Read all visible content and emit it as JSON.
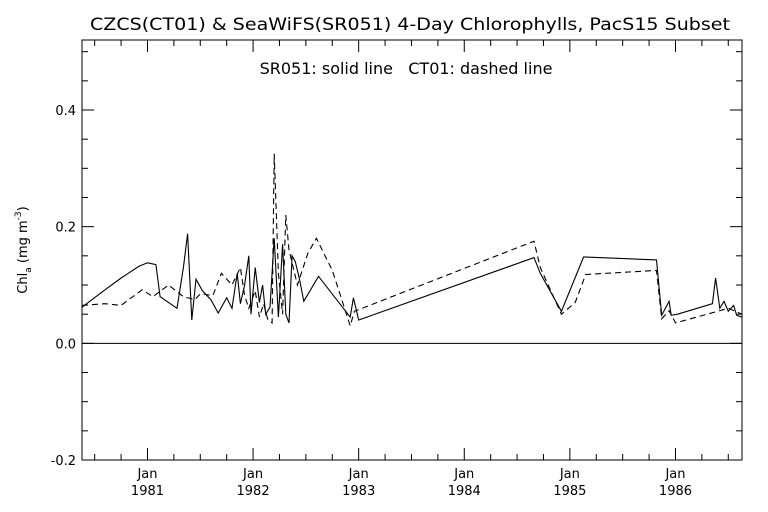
{
  "chart_data": {
    "type": "line",
    "title": "CZCS(CT01) & SeaWiFS(SR051) 4-Day Chlorophylls, PacS15 Subset",
    "annotation": "SR051: solid line   CT01: dashed line",
    "ylabel_main": "Chl",
    "ylabel_sub": "a",
    "ylabel_unit": " (mg m",
    "ylabel_sup": "-3",
    "ylabel_close": ")",
    "ylim": [
      -0.2,
      0.52
    ],
    "xlim": [
      1980.38,
      1986.63
    ],
    "y_ticks": [
      {
        "value": -0.2,
        "label": "-0.2"
      },
      {
        "value": 0.0,
        "label": "0.0"
      },
      {
        "value": 0.2,
        "label": "0.2"
      },
      {
        "value": 0.4,
        "label": "0.4"
      }
    ],
    "y_minor_ticks": [
      -0.15,
      -0.1,
      -0.05,
      0.05,
      0.1,
      0.15,
      0.25,
      0.3,
      0.35,
      0.45,
      0.5
    ],
    "x_ticks": [
      {
        "value": 1981.0,
        "month": "Jan",
        "year": "1981"
      },
      {
        "value": 1982.0,
        "month": "Jan",
        "year": "1982"
      },
      {
        "value": 1983.0,
        "month": "Jan",
        "year": "1983"
      },
      {
        "value": 1984.0,
        "month": "Jan",
        "year": "1984"
      },
      {
        "value": 1985.0,
        "month": "Jan",
        "year": "1985"
      },
      {
        "value": 1986.0,
        "month": "Jan",
        "year": "1986"
      }
    ],
    "x_minor_ticks": [
      1980.5,
      1980.75,
      1981.25,
      1981.5,
      1981.75,
      1982.25,
      1982.5,
      1982.75,
      1983.25,
      1983.5,
      1983.75,
      1984.25,
      1984.5,
      1984.75,
      1985.25,
      1985.5,
      1985.75,
      1986.25,
      1986.5
    ],
    "zero_line": 0.0,
    "series": [
      {
        "name": "SR051",
        "style": "solid",
        "points": [
          [
            1980.38,
            0.062
          ],
          [
            1980.6,
            0.092
          ],
          [
            1980.75,
            0.112
          ],
          [
            1980.92,
            0.132
          ],
          [
            1981.0,
            0.138
          ],
          [
            1981.08,
            0.135
          ],
          [
            1981.12,
            0.08
          ],
          [
            1981.28,
            0.06
          ],
          [
            1981.34,
            0.13
          ],
          [
            1981.38,
            0.188
          ],
          [
            1981.42,
            0.04
          ],
          [
            1981.46,
            0.11
          ],
          [
            1981.52,
            0.09
          ],
          [
            1981.6,
            0.075
          ],
          [
            1981.67,
            0.052
          ],
          [
            1981.75,
            0.078
          ],
          [
            1981.8,
            0.06
          ],
          [
            1981.85,
            0.12
          ],
          [
            1981.88,
            0.068
          ],
          [
            1981.92,
            0.1
          ],
          [
            1981.96,
            0.15
          ],
          [
            1981.98,
            0.05
          ],
          [
            1982.02,
            0.13
          ],
          [
            1982.06,
            0.07
          ],
          [
            1982.09,
            0.1
          ],
          [
            1982.12,
            0.05
          ],
          [
            1982.16,
            0.062
          ],
          [
            1982.2,
            0.18
          ],
          [
            1982.24,
            0.045
          ],
          [
            1982.28,
            0.17
          ],
          [
            1982.31,
            0.05
          ],
          [
            1982.34,
            0.035
          ],
          [
            1982.37,
            0.15
          ],
          [
            1982.4,
            0.14
          ],
          [
            1982.44,
            0.11
          ],
          [
            1982.48,
            0.072
          ],
          [
            1982.62,
            0.115
          ],
          [
            1982.92,
            0.045
          ],
          [
            1982.95,
            0.078
          ],
          [
            1983.0,
            0.04
          ],
          [
            1984.66,
            0.147
          ],
          [
            1984.72,
            0.12
          ],
          [
            1984.92,
            0.055
          ],
          [
            1985.13,
            0.148
          ],
          [
            1985.82,
            0.143
          ],
          [
            1985.87,
            0.048
          ],
          [
            1985.94,
            0.072
          ],
          [
            1985.96,
            0.048
          ],
          [
            1986.02,
            0.05
          ],
          [
            1986.35,
            0.068
          ],
          [
            1986.38,
            0.112
          ],
          [
            1986.42,
            0.06
          ],
          [
            1986.46,
            0.072
          ],
          [
            1986.5,
            0.055
          ],
          [
            1986.55,
            0.065
          ],
          [
            1986.58,
            0.048
          ],
          [
            1986.63,
            0.045
          ]
        ]
      },
      {
        "name": "CT01",
        "style": "dashed",
        "points": [
          [
            1980.38,
            0.065
          ],
          [
            1980.6,
            0.068
          ],
          [
            1980.75,
            0.065
          ],
          [
            1980.95,
            0.092
          ],
          [
            1981.05,
            0.08
          ],
          [
            1981.2,
            0.1
          ],
          [
            1981.34,
            0.08
          ],
          [
            1981.45,
            0.075
          ],
          [
            1981.5,
            0.085
          ],
          [
            1981.62,
            0.082
          ],
          [
            1981.7,
            0.12
          ],
          [
            1981.8,
            0.1
          ],
          [
            1981.88,
            0.13
          ],
          [
            1981.92,
            0.082
          ],
          [
            1981.96,
            0.06
          ],
          [
            1982.02,
            0.09
          ],
          [
            1982.06,
            0.045
          ],
          [
            1982.1,
            0.068
          ],
          [
            1982.14,
            0.04
          ],
          [
            1982.18,
            0.035
          ],
          [
            1982.2,
            0.325
          ],
          [
            1982.24,
            0.12
          ],
          [
            1982.28,
            0.05
          ],
          [
            1982.31,
            0.22
          ],
          [
            1982.34,
            0.16
          ],
          [
            1982.38,
            0.13
          ],
          [
            1982.42,
            0.1
          ],
          [
            1982.52,
            0.155
          ],
          [
            1982.6,
            0.18
          ],
          [
            1982.75,
            0.125
          ],
          [
            1982.92,
            0.03
          ],
          [
            1982.96,
            0.055
          ],
          [
            1984.66,
            0.175
          ],
          [
            1984.72,
            0.13
          ],
          [
            1984.92,
            0.05
          ],
          [
            1985.05,
            0.07
          ],
          [
            1985.15,
            0.118
          ],
          [
            1985.82,
            0.125
          ],
          [
            1985.87,
            0.042
          ],
          [
            1985.94,
            0.056
          ],
          [
            1986.0,
            0.035
          ],
          [
            1986.2,
            0.045
          ],
          [
            1986.5,
            0.06
          ],
          [
            1986.63,
            0.05
          ]
        ]
      }
    ]
  }
}
